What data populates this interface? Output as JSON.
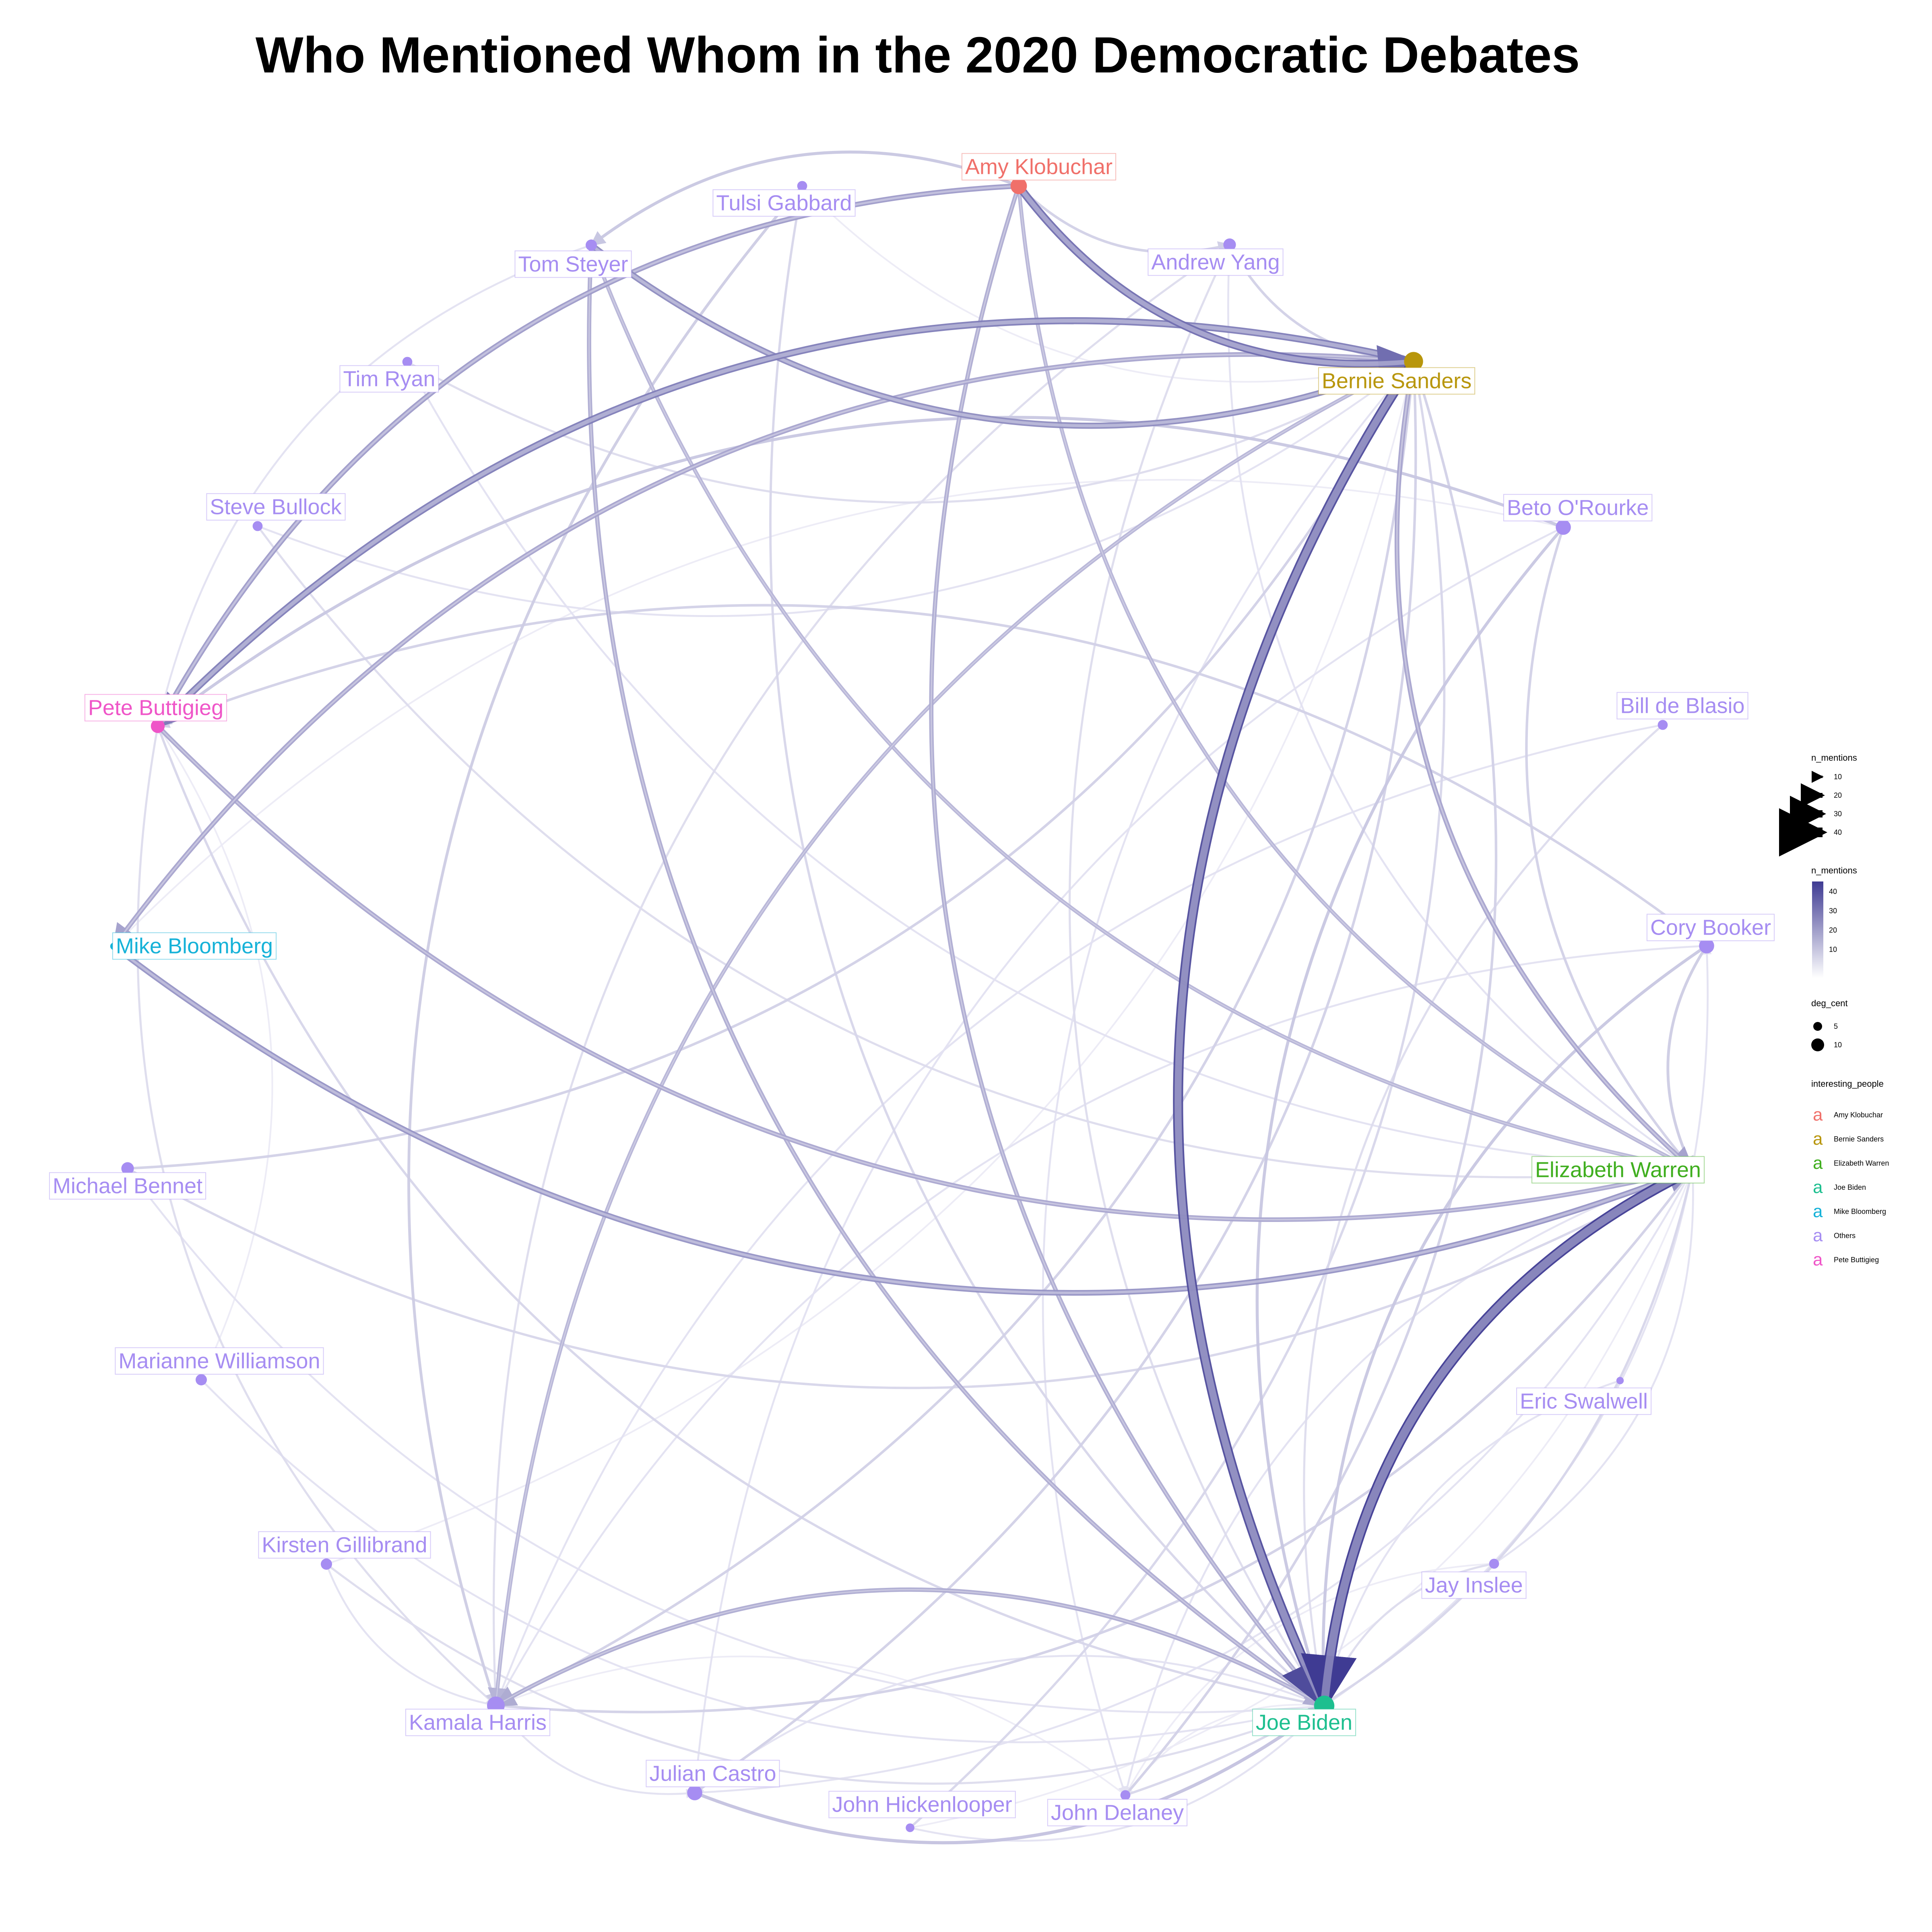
{
  "title": "Who Mentioned Whom in the 2020 Democratic Debates",
  "colors": {
    "edge_low": "#ecebf6",
    "edge_high": "#3f3b93",
    "Amy Klobuchar": "#f0706a",
    "Bernie Sanders": "#b8960c",
    "Elizabeth Warren": "#3fae1e",
    "Joe Biden": "#1dbf8f",
    "Mike Bloomberg": "#16b2d8",
    "Others": "#a68df2",
    "Pete Buttigieg": "#ef55c8"
  },
  "nodes": [
    {
      "id": "amy",
      "name": "Amy Klobuchar",
      "group": "Amy Klobuchar",
      "deg_cent": 9
    },
    {
      "id": "yang",
      "name": "Andrew Yang",
      "group": "Others",
      "deg_cent": 6
    },
    {
      "id": "bernie",
      "name": "Bernie Sanders",
      "group": "Bernie Sanders",
      "deg_cent": 11
    },
    {
      "id": "beto",
      "name": "Beto O'Rourke",
      "group": "Others",
      "deg_cent": 8
    },
    {
      "id": "deblasio",
      "name": "Bill de Blasio",
      "group": "Others",
      "deg_cent": 4
    },
    {
      "id": "booker",
      "name": "Cory Booker",
      "group": "Others",
      "deg_cent": 8
    },
    {
      "id": "warren",
      "name": "Elizabeth Warren",
      "group": "Elizabeth Warren",
      "deg_cent": 9
    },
    {
      "id": "swalwell",
      "name": "Eric Swalwell",
      "group": "Others",
      "deg_cent": 2
    },
    {
      "id": "inslee",
      "name": "Jay Inslee",
      "group": "Others",
      "deg_cent": 4
    },
    {
      "id": "biden",
      "name": "Joe Biden",
      "group": "Joe Biden",
      "deg_cent": 12
    },
    {
      "id": "delaney",
      "name": "John Delaney",
      "group": "Others",
      "deg_cent": 4
    },
    {
      "id": "hickenlooper",
      "name": "John Hickenlooper",
      "group": "Others",
      "deg_cent": 3
    },
    {
      "id": "castro",
      "name": "Julian Castro",
      "group": "Others",
      "deg_cent": 8
    },
    {
      "id": "harris",
      "name": "Kamala Harris",
      "group": "Others",
      "deg_cent": 10
    },
    {
      "id": "gillibrand",
      "name": "Kirsten Gillibrand",
      "group": "Others",
      "deg_cent": 5
    },
    {
      "id": "williamson",
      "name": "Marianne Williamson",
      "group": "Others",
      "deg_cent": 5
    },
    {
      "id": "bennet",
      "name": "Michael Bennet",
      "group": "Others",
      "deg_cent": 6
    },
    {
      "id": "bloomberg",
      "name": "Mike Bloomberg",
      "group": "Mike Bloomberg",
      "deg_cent": 2
    },
    {
      "id": "pete",
      "name": "Pete Buttigieg",
      "group": "Pete Buttigieg",
      "deg_cent": 7
    },
    {
      "id": "bullock",
      "name": "Steve Bullock",
      "group": "Others",
      "deg_cent": 4
    },
    {
      "id": "ryan",
      "name": "Tim Ryan",
      "group": "Others",
      "deg_cent": 4
    },
    {
      "id": "steyer",
      "name": "Tom Steyer",
      "group": "Others",
      "deg_cent": 5
    },
    {
      "id": "gabbard",
      "name": "Tulsi Gabbard",
      "group": "Others",
      "deg_cent": 4
    }
  ],
  "edges": [
    {
      "from": "warren",
      "to": "biden",
      "n": 45
    },
    {
      "from": "bernie",
      "to": "biden",
      "n": 40
    },
    {
      "from": "amy",
      "to": "bernie",
      "n": 30
    },
    {
      "from": "bernie",
      "to": "pete",
      "n": 26
    },
    {
      "from": "steyer",
      "to": "bernie",
      "n": 22
    },
    {
      "from": "bloomberg",
      "to": "warren",
      "n": 20
    },
    {
      "from": "bernie",
      "to": "bloomberg",
      "n": 16
    },
    {
      "from": "amy",
      "to": "pete",
      "n": 18
    },
    {
      "from": "pete",
      "to": "warren",
      "n": 15
    },
    {
      "from": "amy",
      "to": "biden",
      "n": 14
    },
    {
      "from": "steyer",
      "to": "biden",
      "n": 14
    },
    {
      "from": "bernie",
      "to": "warren",
      "n": 16
    },
    {
      "from": "biden",
      "to": "harris",
      "n": 14
    },
    {
      "from": "steyer",
      "to": "warren",
      "n": 12
    },
    {
      "from": "bernie",
      "to": "harris",
      "n": 12
    },
    {
      "from": "amy",
      "to": "warren",
      "n": 12
    },
    {
      "from": "amy",
      "to": "steyer",
      "n": 8
    },
    {
      "from": "amy",
      "to": "yang",
      "n": 6
    },
    {
      "from": "yang",
      "to": "bernie",
      "n": 6
    },
    {
      "from": "beto",
      "to": "pete",
      "n": 8
    },
    {
      "from": "beto",
      "to": "biden",
      "n": 8
    },
    {
      "from": "beto",
      "to": "warren",
      "n": 6
    },
    {
      "from": "booker",
      "to": "biden",
      "n": 8
    },
    {
      "from": "booker",
      "to": "pete",
      "n": 6
    },
    {
      "from": "booker",
      "to": "warren",
      "n": 7
    },
    {
      "from": "castro",
      "to": "biden",
      "n": 9
    },
    {
      "from": "castro",
      "to": "bernie",
      "n": 6
    },
    {
      "from": "harris",
      "to": "warren",
      "n": 6
    },
    {
      "from": "harris",
      "to": "bernie",
      "n": 6
    },
    {
      "from": "gabbard",
      "to": "harris",
      "n": 7
    },
    {
      "from": "gabbard",
      "to": "biden",
      "n": 5
    },
    {
      "from": "bennet",
      "to": "bernie",
      "n": 6
    },
    {
      "from": "bennet",
      "to": "warren",
      "n": 5
    },
    {
      "from": "delaney",
      "to": "bernie",
      "n": 6
    },
    {
      "from": "delaney",
      "to": "warren",
      "n": 5
    },
    {
      "from": "hickenlooper",
      "to": "bernie",
      "n": 5
    },
    {
      "from": "hickenlooper",
      "to": "biden",
      "n": 3
    },
    {
      "from": "williamson",
      "to": "biden",
      "n": 3
    },
    {
      "from": "gillibrand",
      "to": "biden",
      "n": 4
    },
    {
      "from": "gillibrand",
      "to": "harris",
      "n": 3
    },
    {
      "from": "inslee",
      "to": "biden",
      "n": 4
    },
    {
      "from": "inslee",
      "to": "warren",
      "n": 3
    },
    {
      "from": "swalwell",
      "to": "biden",
      "n": 3
    },
    {
      "from": "deblasio",
      "to": "biden",
      "n": 4
    },
    {
      "from": "deblasio",
      "to": "harris",
      "n": 3
    },
    {
      "from": "ryan",
      "to": "bernie",
      "n": 4
    },
    {
      "from": "ryan",
      "to": "warren",
      "n": 3
    },
    {
      "from": "bullock",
      "to": "warren",
      "n": 4
    },
    {
      "from": "bullock",
      "to": "bernie",
      "n": 3
    },
    {
      "from": "yang",
      "to": "biden",
      "n": 4
    },
    {
      "from": "yang",
      "to": "harris",
      "n": 4
    },
    {
      "from": "pete",
      "to": "harris",
      "n": 4
    },
    {
      "from": "pete",
      "to": "biden",
      "n": 5
    },
    {
      "from": "harris",
      "to": "castro",
      "n": 3
    },
    {
      "from": "biden",
      "to": "castro",
      "n": 3
    },
    {
      "from": "biden",
      "to": "delaney",
      "n": 2
    },
    {
      "from": "biden",
      "to": "booker",
      "n": 3
    },
    {
      "from": "warren",
      "to": "delaney",
      "n": 3
    },
    {
      "from": "bernie",
      "to": "delaney",
      "n": 3
    },
    {
      "from": "booker",
      "to": "harris",
      "n": 3
    },
    {
      "from": "beto",
      "to": "castro",
      "n": 3
    },
    {
      "from": "beto",
      "to": "bloomberg",
      "n": 2
    },
    {
      "from": "gabbard",
      "to": "bernie",
      "n": 2
    },
    {
      "from": "williamson",
      "to": "pete",
      "n": 2
    },
    {
      "from": "bennet",
      "to": "biden",
      "n": 3
    },
    {
      "from": "hickenlooper",
      "to": "warren",
      "n": 2
    },
    {
      "from": "tim",
      "to": "harris",
      "n": 2
    },
    {
      "from": "steyer",
      "to": "pete",
      "n": 3
    },
    {
      "from": "yang",
      "to": "warren",
      "n": 3
    },
    {
      "from": "inslee",
      "to": "delaney",
      "n": 2
    },
    {
      "from": "castro",
      "to": "warren",
      "n": 3
    },
    {
      "from": "gillibrand",
      "to": "bernie",
      "n": 2
    },
    {
      "from": "delaney",
      "to": "harris",
      "n": 2
    }
  ],
  "legend": {
    "size_title": "n_mentions",
    "size_values": [
      "10",
      "20",
      "30",
      "40"
    ],
    "color_title": "n_mentions",
    "color_values": [
      "40",
      "30",
      "20",
      "10"
    ],
    "deg_title": "deg_cent",
    "deg_values": [
      "5",
      "10"
    ],
    "people_title": "interesting_people",
    "people_glyph": "a",
    "people": [
      "Amy Klobuchar",
      "Bernie Sanders",
      "Elizabeth Warren",
      "Joe Biden",
      "Mike Bloomberg",
      "Others",
      "Pete Buttigieg"
    ]
  }
}
